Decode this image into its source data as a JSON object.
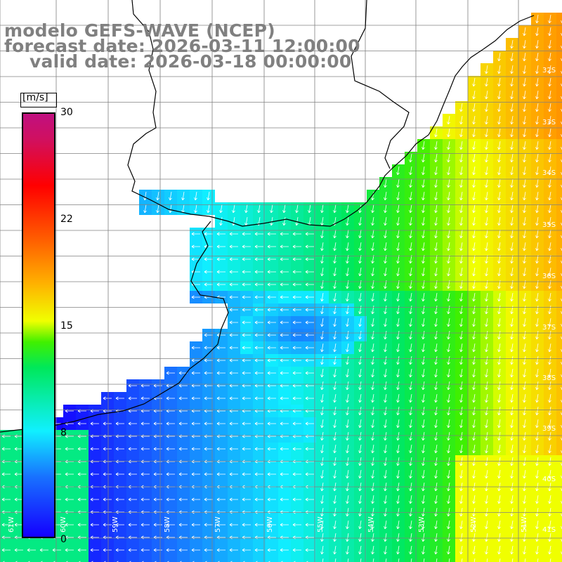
{
  "title": {
    "line1": "modelo GEFS-WAVE (NCEP)",
    "line2": "forecast date: 2026-03-11 12:00:00",
    "line3": "valid date: 2026-03-18 00:00:00"
  },
  "colorbar": {
    "unit": "[m/s]",
    "ticks": [
      {
        "label": "30",
        "value": 30
      },
      {
        "label": "22",
        "value": 22
      },
      {
        "label": "15",
        "value": 15
      },
      {
        "label": "8",
        "value": 8
      },
      {
        "label": "0",
        "value": 0
      }
    ],
    "colors": [
      "#1400ff",
      "#1870ff",
      "#10f0ff",
      "#00e85a",
      "#40f000",
      "#f0ff00",
      "#ffb000",
      "#ff6000",
      "#ff0000",
      "#c01080"
    ]
  },
  "axes": {
    "lat_labels": [
      "32S",
      "33S",
      "34S",
      "35S",
      "36S",
      "37S",
      "38S",
      "39S",
      "40S",
      "41S"
    ],
    "lon_labels": [
      "61W",
      "60W",
      "59W",
      "58W",
      "57W",
      "56W",
      "55W",
      "54W",
      "53W",
      "52W",
      "51W"
    ]
  },
  "map": {
    "land_color": "#ffffff",
    "grid_color": "#808080",
    "coast_color": "#000000",
    "arrow_color": "#ffffff"
  }
}
